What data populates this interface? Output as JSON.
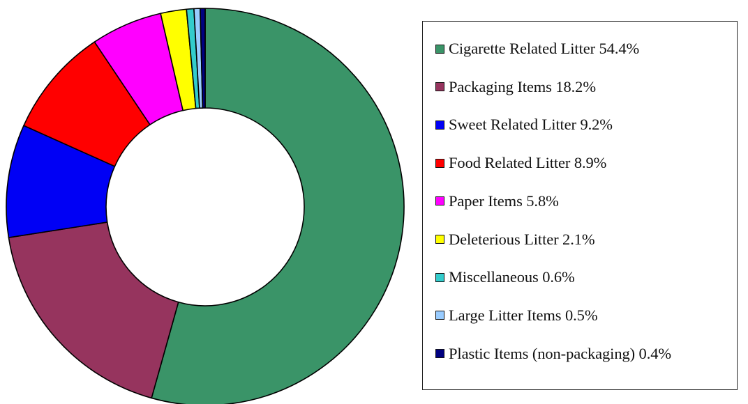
{
  "chart_data": {
    "type": "pie",
    "variant": "donut",
    "title": "",
    "legend_position": "right",
    "series": [
      {
        "label": "Cigarette Related Litter 54.4%",
        "name": "Cigarette Related Litter",
        "value": 54.4,
        "color": "#3a9468"
      },
      {
        "label": "Packaging Items 18.2%",
        "name": "Packaging Items",
        "value": 18.2,
        "color": "#96345e"
      },
      {
        "label": "Sweet Related Litter 9.2%",
        "name": "Sweet Related Litter",
        "value": 9.2,
        "color": "#0000f5"
      },
      {
        "label": "Food Related  Litter 8.9%",
        "name": "Food Related  Litter",
        "value": 8.9,
        "color": "#ff0000"
      },
      {
        "label": "Paper Items 5.8%",
        "name": "Paper Items",
        "value": 5.8,
        "color": "#ff00ff"
      },
      {
        "label": "Deleterious Litter 2.1%",
        "name": "Deleterious Litter",
        "value": 2.1,
        "color": "#ffff00"
      },
      {
        "label": "Miscellaneous 0.6%",
        "name": "Miscellaneous",
        "value": 0.6,
        "color": "#33cccc"
      },
      {
        "label": "Large Litter Items 0.5%",
        "name": "Large Litter Items",
        "value": 0.5,
        "color": "#99ccff"
      },
      {
        "label": "Plastic Items (non-packaging) 0.4%",
        "name": "Plastic Items (non-packaging)",
        "value": 0.4,
        "color": "#000080"
      }
    ]
  }
}
